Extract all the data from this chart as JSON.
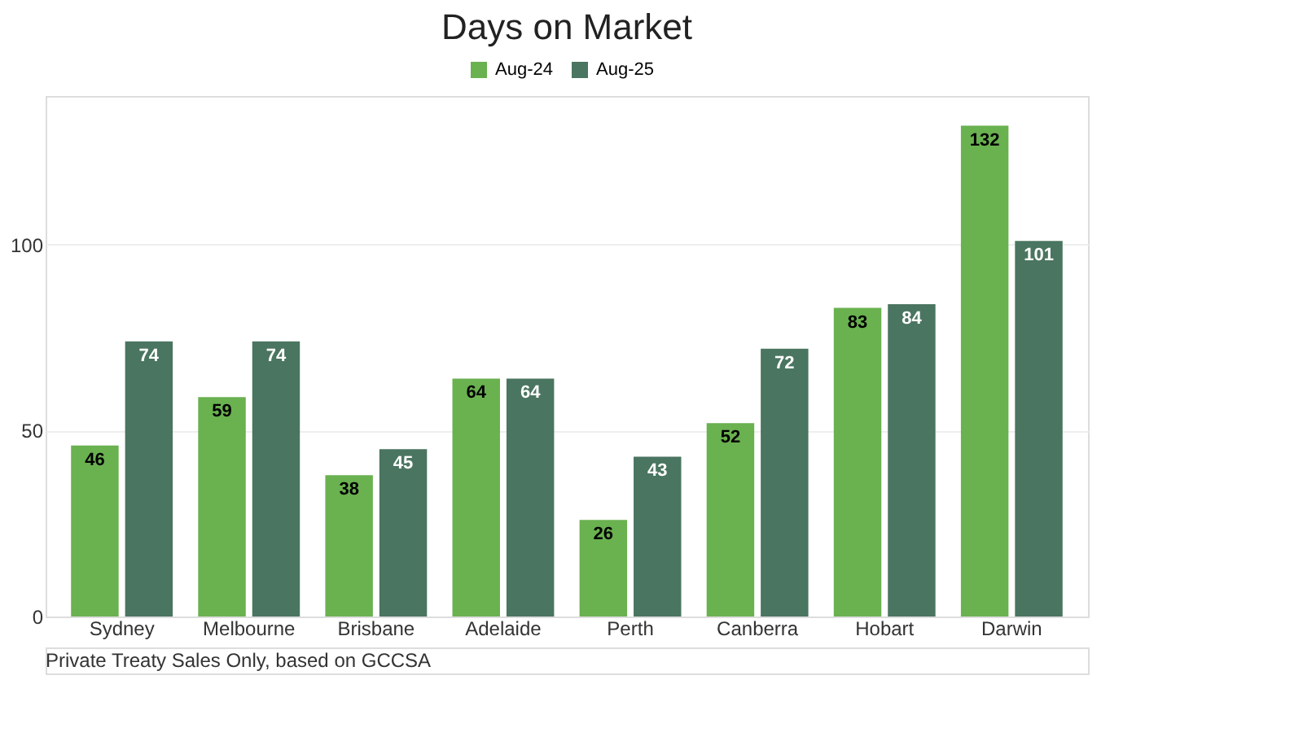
{
  "chart_data": {
    "type": "bar",
    "title": "Days on Market",
    "categories": [
      "Sydney",
      "Melbourne",
      "Brisbane",
      "Adelaide",
      "Perth",
      "Canberra",
      "Hobart",
      "Darwin"
    ],
    "series": [
      {
        "name": "Aug-24",
        "color": "#6ab150",
        "values": [
          46,
          59,
          38,
          64,
          26,
          52,
          83,
          132
        ]
      },
      {
        "name": "Aug-25",
        "color": "#4a7560",
        "values": [
          74,
          74,
          45,
          64,
          43,
          72,
          84,
          101
        ]
      }
    ],
    "ylim": [
      0,
      140
    ],
    "yticks": [
      0,
      50,
      100
    ],
    "grid": "y",
    "legend": "top",
    "data_labels": true,
    "annotations": [
      "Private Treaty Sales Only, based on GCCSA"
    ]
  }
}
